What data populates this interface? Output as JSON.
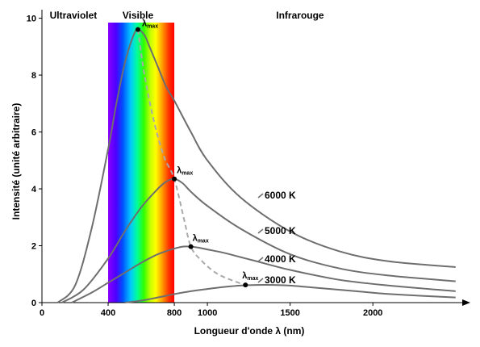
{
  "chart_data": {
    "type": "line",
    "title": "",
    "xlabel": "Longueur d'onde λ (nm)",
    "ylabel": "Intensité (unité arbitraire)",
    "xlim": [
      0,
      2550
    ],
    "ylim": [
      0,
      10.3
    ],
    "x_ticks": [
      0,
      400,
      800,
      1000,
      1500,
      2000
    ],
    "x_tick_labels": [
      "0",
      "400",
      "800",
      "1000",
      "1500",
      "2000"
    ],
    "y_ticks": [
      0,
      2,
      4,
      6,
      8,
      10
    ],
    "y_tick_labels": [
      "0",
      "2",
      "4",
      "6",
      "8",
      "10"
    ],
    "grid": false,
    "regions": [
      {
        "label": "Ultraviolet",
        "x_center": 190
      },
      {
        "label": "Visible",
        "x_center": 580
      },
      {
        "label": "Infrarouge",
        "x_center": 1560
      }
    ],
    "visible_band": {
      "from": 400,
      "to": 800
    },
    "series": [
      {
        "name": "6000 K",
        "color": "#6e6e6e",
        "x": [
          95,
          200,
          300,
          400,
          450,
          500,
          550,
          580,
          620,
          650,
          700,
          750,
          800,
          900,
          1000,
          1200,
          1500,
          1800,
          2100,
          2500
        ],
        "y": [
          0.0,
          0.6,
          2.6,
          5.4,
          7.0,
          8.4,
          9.35,
          9.6,
          9.4,
          9.0,
          8.3,
          7.6,
          7.1,
          6.0,
          5.0,
          3.7,
          2.5,
          1.8,
          1.45,
          1.25
        ]
      },
      {
        "name": "5000 K",
        "color": "#6e6e6e",
        "x": [
          120,
          250,
          400,
          500,
          600,
          700,
          750,
          800,
          850,
          900,
          1000,
          1200,
          1500,
          1800,
          2100,
          2500
        ],
        "y": [
          0.0,
          0.45,
          1.55,
          2.5,
          3.35,
          4.0,
          4.25,
          4.35,
          4.2,
          3.9,
          3.4,
          2.6,
          1.7,
          1.2,
          0.95,
          0.75
        ]
      },
      {
        "name": "4000 K",
        "color": "#6e6e6e",
        "x": [
          180,
          300,
          400,
          500,
          600,
          700,
          800,
          850,
          900,
          950,
          1000,
          1100,
          1200,
          1300,
          1500,
          1800,
          2100,
          2500
        ],
        "y": [
          0.0,
          0.35,
          0.7,
          1.05,
          1.4,
          1.7,
          1.9,
          1.97,
          1.97,
          1.93,
          1.87,
          1.75,
          1.6,
          1.45,
          1.15,
          0.8,
          0.6,
          0.4
        ]
      },
      {
        "name": "3000 K",
        "color": "#6e6e6e",
        "x": [
          500,
          600,
          700,
          800,
          900,
          1000,
          1100,
          1200,
          1300,
          1400,
          1500,
          1700,
          1900,
          2100,
          2500
        ],
        "y": [
          0.0,
          0.07,
          0.18,
          0.3,
          0.4,
          0.48,
          0.55,
          0.6,
          0.62,
          0.62,
          0.6,
          0.5,
          0.4,
          0.3,
          0.18
        ]
      }
    ],
    "lambda_max_points": [
      {
        "temperature": "6000 K",
        "x": 580,
        "y": 9.6,
        "label": "λ",
        "sub": "max"
      },
      {
        "temperature": "5000 K",
        "x": 800,
        "y": 4.35,
        "label": "λ",
        "sub": "max"
      },
      {
        "temperature": "4000 K",
        "x": 900,
        "y": 1.97,
        "label": "λ",
        "sub": "max"
      },
      {
        "temperature": "3000 K",
        "x": 1230,
        "y": 0.62,
        "label": "λ",
        "sub": "max"
      }
    ],
    "wien_curve": {
      "style": "dashed",
      "color": "#aaaaaa",
      "x": [
        580,
        620,
        680,
        740,
        800,
        860,
        900,
        960,
        1050,
        1150,
        1230
      ],
      "y": [
        9.6,
        8.0,
        6.3,
        5.1,
        4.35,
        2.9,
        1.97,
        1.5,
        1.05,
        0.78,
        0.62
      ]
    }
  }
}
